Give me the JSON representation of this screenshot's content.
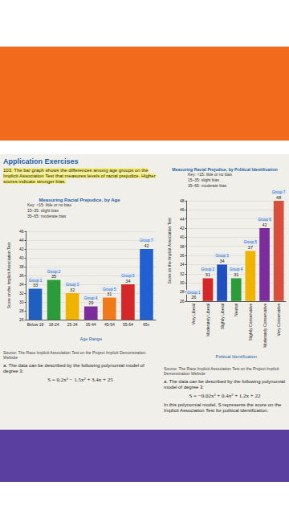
{
  "page": {
    "heading": "Application Exercises",
    "exercise": "103. The bar graph shows the differences among age groups on the Implicit Association Test that measures levels of racial prejudice. Higher scores indicate stronger bias.",
    "left_source": "Source: The Race Implicit Association Test on the Project Implicit Demonstration Website",
    "left_part_a": "a. The data can be described by the following polynomial model of degree 3:",
    "left_model": "S = 0.2x³ − 1.5x² + 3.4x + 25",
    "right_source": "Source: The Race Implicit Association Test on the Project Implicit Demonstration Website",
    "right_part_a": "a. The data can be described by the following polynomial model of degree 3:",
    "right_model": "S = −0.02x³ + 0.4x² + 1.2x + 22",
    "right_note": "In this polynomial model, S represents the score on the Implicit Association Test for political identification."
  },
  "chart_data": [
    {
      "type": "bar",
      "title": "Measuring Racial Prejudice, by Age",
      "key": [
        "Key: <15: little or no bias",
        "15–35: slight bias",
        "35–65: moderate bias"
      ],
      "categories": [
        "Below 18",
        "18-24",
        "25-34",
        "35-44",
        "45-54",
        "55-64",
        "65+"
      ],
      "values": [
        33,
        35,
        32,
        29,
        31,
        34,
        42
      ],
      "group_labels": [
        "Group 1",
        "Group 2",
        "Group 3",
        "Group 4",
        "Group 5",
        "Group 6",
        "Group 7"
      ],
      "colors": [
        "#1f5fbf",
        "#2a9d3a",
        "#f0b400",
        "#7b2d9c",
        "#f07a1a",
        "#d62728",
        "#2060d0"
      ],
      "x_label": "Age Range",
      "y_label": "Score on the Implicit Association Test",
      "ylim": [
        26,
        46
      ],
      "yticks": [
        26,
        28,
        30,
        32,
        34,
        36,
        38,
        40,
        42,
        44,
        46
      ],
      "grid": true,
      "data_labels": true
    },
    {
      "type": "bar",
      "title": "Measuring Racial Prejudice, by Political Identification",
      "key": [
        "Key: <15: little or no bias",
        "15–35: slight bias",
        "35–65: moderate bias"
      ],
      "categories": [
        "Very Liberal",
        "Moderately Liberal",
        "Slightly Liberal",
        "Neutral",
        "Slightly Conservative",
        "Moderately Conservative",
        "Very Conservative"
      ],
      "values": [
        26,
        31,
        34,
        31,
        37,
        42,
        48
      ],
      "group_labels": [
        "Group 1",
        "Group 2",
        "Group 3",
        "Group 4",
        "Group 5",
        "Group 6",
        "Group 7"
      ],
      "colors": [
        "#f07a1a",
        "#d62728",
        "#1f4fbf",
        "#2a9d3a",
        "#f0b400",
        "#7b2d9c",
        "#d94f3d"
      ],
      "x_label": "Political Identification",
      "y_label": "Score on the Implicit Association Test",
      "ylim": [
        26,
        48
      ],
      "yticks": [
        26,
        28,
        30,
        32,
        34,
        36,
        38,
        40,
        42,
        44,
        46,
        48
      ],
      "grid": true,
      "data_labels": true
    }
  ]
}
